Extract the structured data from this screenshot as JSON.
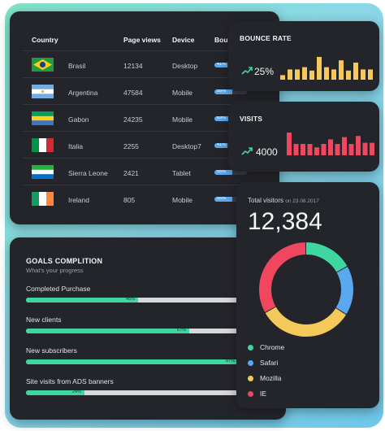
{
  "table": {
    "headers": [
      "Country",
      "Page views",
      "Device",
      "Bounce Rate"
    ],
    "rows": [
      {
        "country": "Brasil",
        "flag": "brazil-flag",
        "views": "12134",
        "device": "Desktop",
        "bounce": 0.41,
        "bounce_label": "41%"
      },
      {
        "country": "Argentina",
        "flag": "argentina-flag",
        "views": "47584",
        "device": "Mobile",
        "bounce": 0.55,
        "bounce_label": "55%"
      },
      {
        "country": "Gabon",
        "flag": "gabon-flag",
        "views": "24235",
        "device": "Mobile",
        "bounce": 0.69,
        "bounce_label": "69%"
      },
      {
        "country": "Italia",
        "flag": "italy-flag",
        "views": "2255",
        "device": "Desktop7",
        "bounce": 0.41,
        "bounce_label": "41%"
      },
      {
        "country": "Sierra Leone",
        "flag": "sierra-leone-flag",
        "views": "2421",
        "device": "Tablet",
        "bounce": 0.55,
        "bounce_label": "55%"
      },
      {
        "country": "Ireland",
        "flag": "ireland-flag",
        "views": "805",
        "device": "Mobile",
        "bounce": 0.55,
        "bounce_label": "55%"
      }
    ]
  },
  "goals": {
    "title": "GOALS COMPLITION",
    "subtitle": "What's your progress",
    "items": [
      {
        "label": "Completed Purchase",
        "value": 0.46,
        "pct_label": "46%"
      },
      {
        "label": "New clients",
        "value": 0.67,
        "pct_label": "67%"
      },
      {
        "label": "New subscribers",
        "value": 0.87,
        "pct_label": "87%"
      },
      {
        "label": "Site visits from ADS banners",
        "value": 0.24,
        "pct_label": "24%"
      }
    ]
  },
  "bounce": {
    "title": "BOUNCE RATE",
    "value": "25%",
    "color": "#f5c85a",
    "bars": [
      0.2,
      0.45,
      0.45,
      0.55,
      0.4,
      1.0,
      0.55,
      0.45,
      0.85,
      0.4,
      0.75,
      0.45,
      0.45
    ]
  },
  "visits": {
    "title": "VISITS",
    "value": "4000",
    "color": "#f0465e",
    "bars": [
      1.0,
      0.5,
      0.5,
      0.5,
      0.35,
      0.5,
      0.7,
      0.5,
      0.8,
      0.5,
      0.85,
      0.55,
      0.55
    ]
  },
  "total": {
    "label": "Total visitors",
    "date": "on 23.08.2017",
    "value": "12,384"
  },
  "chart_data": {
    "type": "pie",
    "style": "donut",
    "series": [
      {
        "name": "Chrome",
        "value": 0.17,
        "color": "#3fd6a2"
      },
      {
        "name": "Safari",
        "value": 0.17,
        "color": "#5aa9f0"
      },
      {
        "name": "Mozilla",
        "value": 0.33,
        "color": "#f5c85a"
      },
      {
        "name": "IE",
        "value": 0.33,
        "color": "#f0465e"
      }
    ]
  },
  "colors": {
    "accent_green": "#3fd6a2",
    "accent_blue": "#5aa9f0",
    "card_bg": "#24252b"
  }
}
